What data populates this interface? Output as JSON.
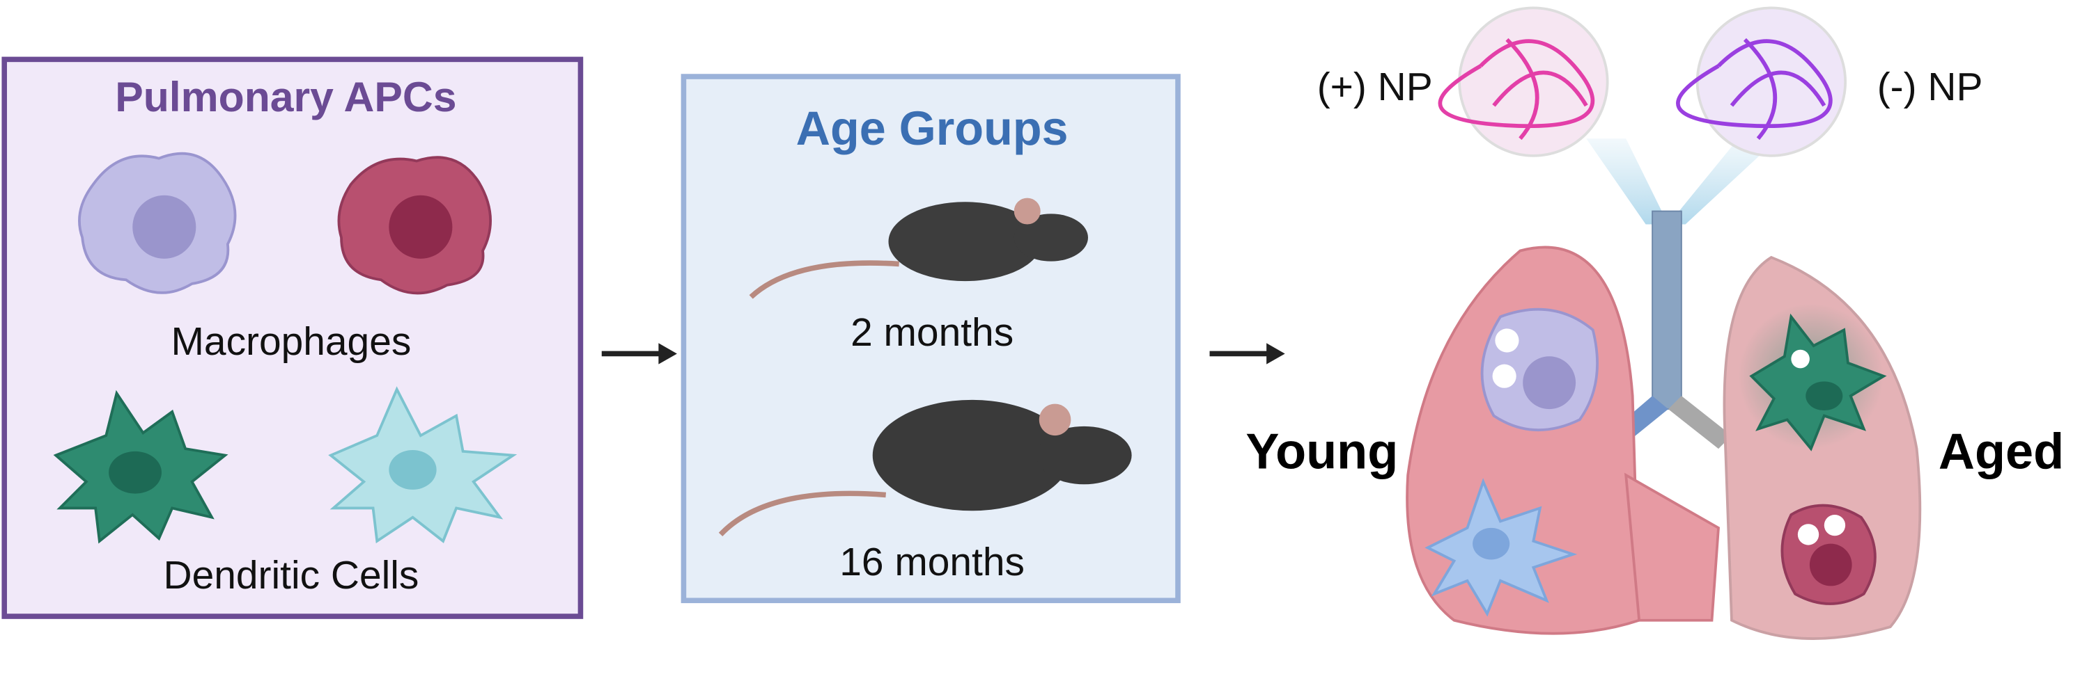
{
  "panels": [
    {
      "title": "Pulmonary APCs",
      "labels": [
        "Macrophages",
        "Dendritic Cells"
      ]
    },
    {
      "title": "Age Groups",
      "labels": [
        "2 months",
        "16 months"
      ]
    },
    {
      "labels": [
        "(+) NP",
        "(-) NP",
        "Young",
        "Aged"
      ]
    }
  ]
}
